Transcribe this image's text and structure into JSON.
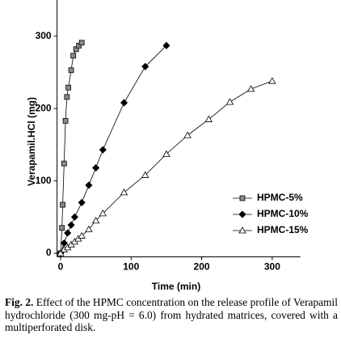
{
  "chart_data": {
    "type": "line",
    "xlabel": "Time (min)",
    "ylabel": "Verapamil.HCl (mg)",
    "xlim": [
      -5,
      340
    ],
    "xticks": [
      0,
      100,
      200,
      300
    ],
    "ylim": [
      -5,
      350
    ],
    "yticks": [
      0,
      100,
      200,
      300
    ],
    "legend": "right",
    "series": [
      {
        "name": "HPMC-5%",
        "marker": "square",
        "color": "#8a8a8a",
        "x": [
          0,
          2,
          3,
          5,
          7,
          9,
          11,
          15,
          18,
          22,
          26,
          30
        ],
        "values": [
          0,
          35,
          67,
          124,
          183,
          216,
          229,
          253,
          273,
          282,
          287,
          291
        ]
      },
      {
        "name": "HPMC-10%",
        "marker": "diamond",
        "color": "#000000",
        "x": [
          0,
          5,
          10,
          15,
          20,
          30,
          40,
          50,
          60,
          90,
          120,
          150
        ],
        "values": [
          0,
          14,
          28,
          39,
          50,
          70,
          94,
          118,
          143,
          208,
          258,
          287
        ]
      },
      {
        "name": "HPMC-15%",
        "marker": "triangle",
        "color": "#ffffff",
        "x": [
          0,
          5,
          10,
          15,
          20,
          25,
          30,
          40,
          50,
          60,
          90,
          120,
          150,
          180,
          210,
          240,
          270,
          300
        ],
        "values": [
          0,
          5,
          8,
          12,
          16,
          20,
          24,
          33,
          45,
          55,
          84,
          108,
          137,
          163,
          185,
          209,
          227,
          238
        ]
      }
    ]
  },
  "caption": {
    "label": "Fig. 2.",
    "text": "Effect of the HPMC concentration on the release profile of Verapamil hydrochloride (300 mg-pH = 6.0) from hydrated matrices, covered with a multiperforated disk."
  }
}
